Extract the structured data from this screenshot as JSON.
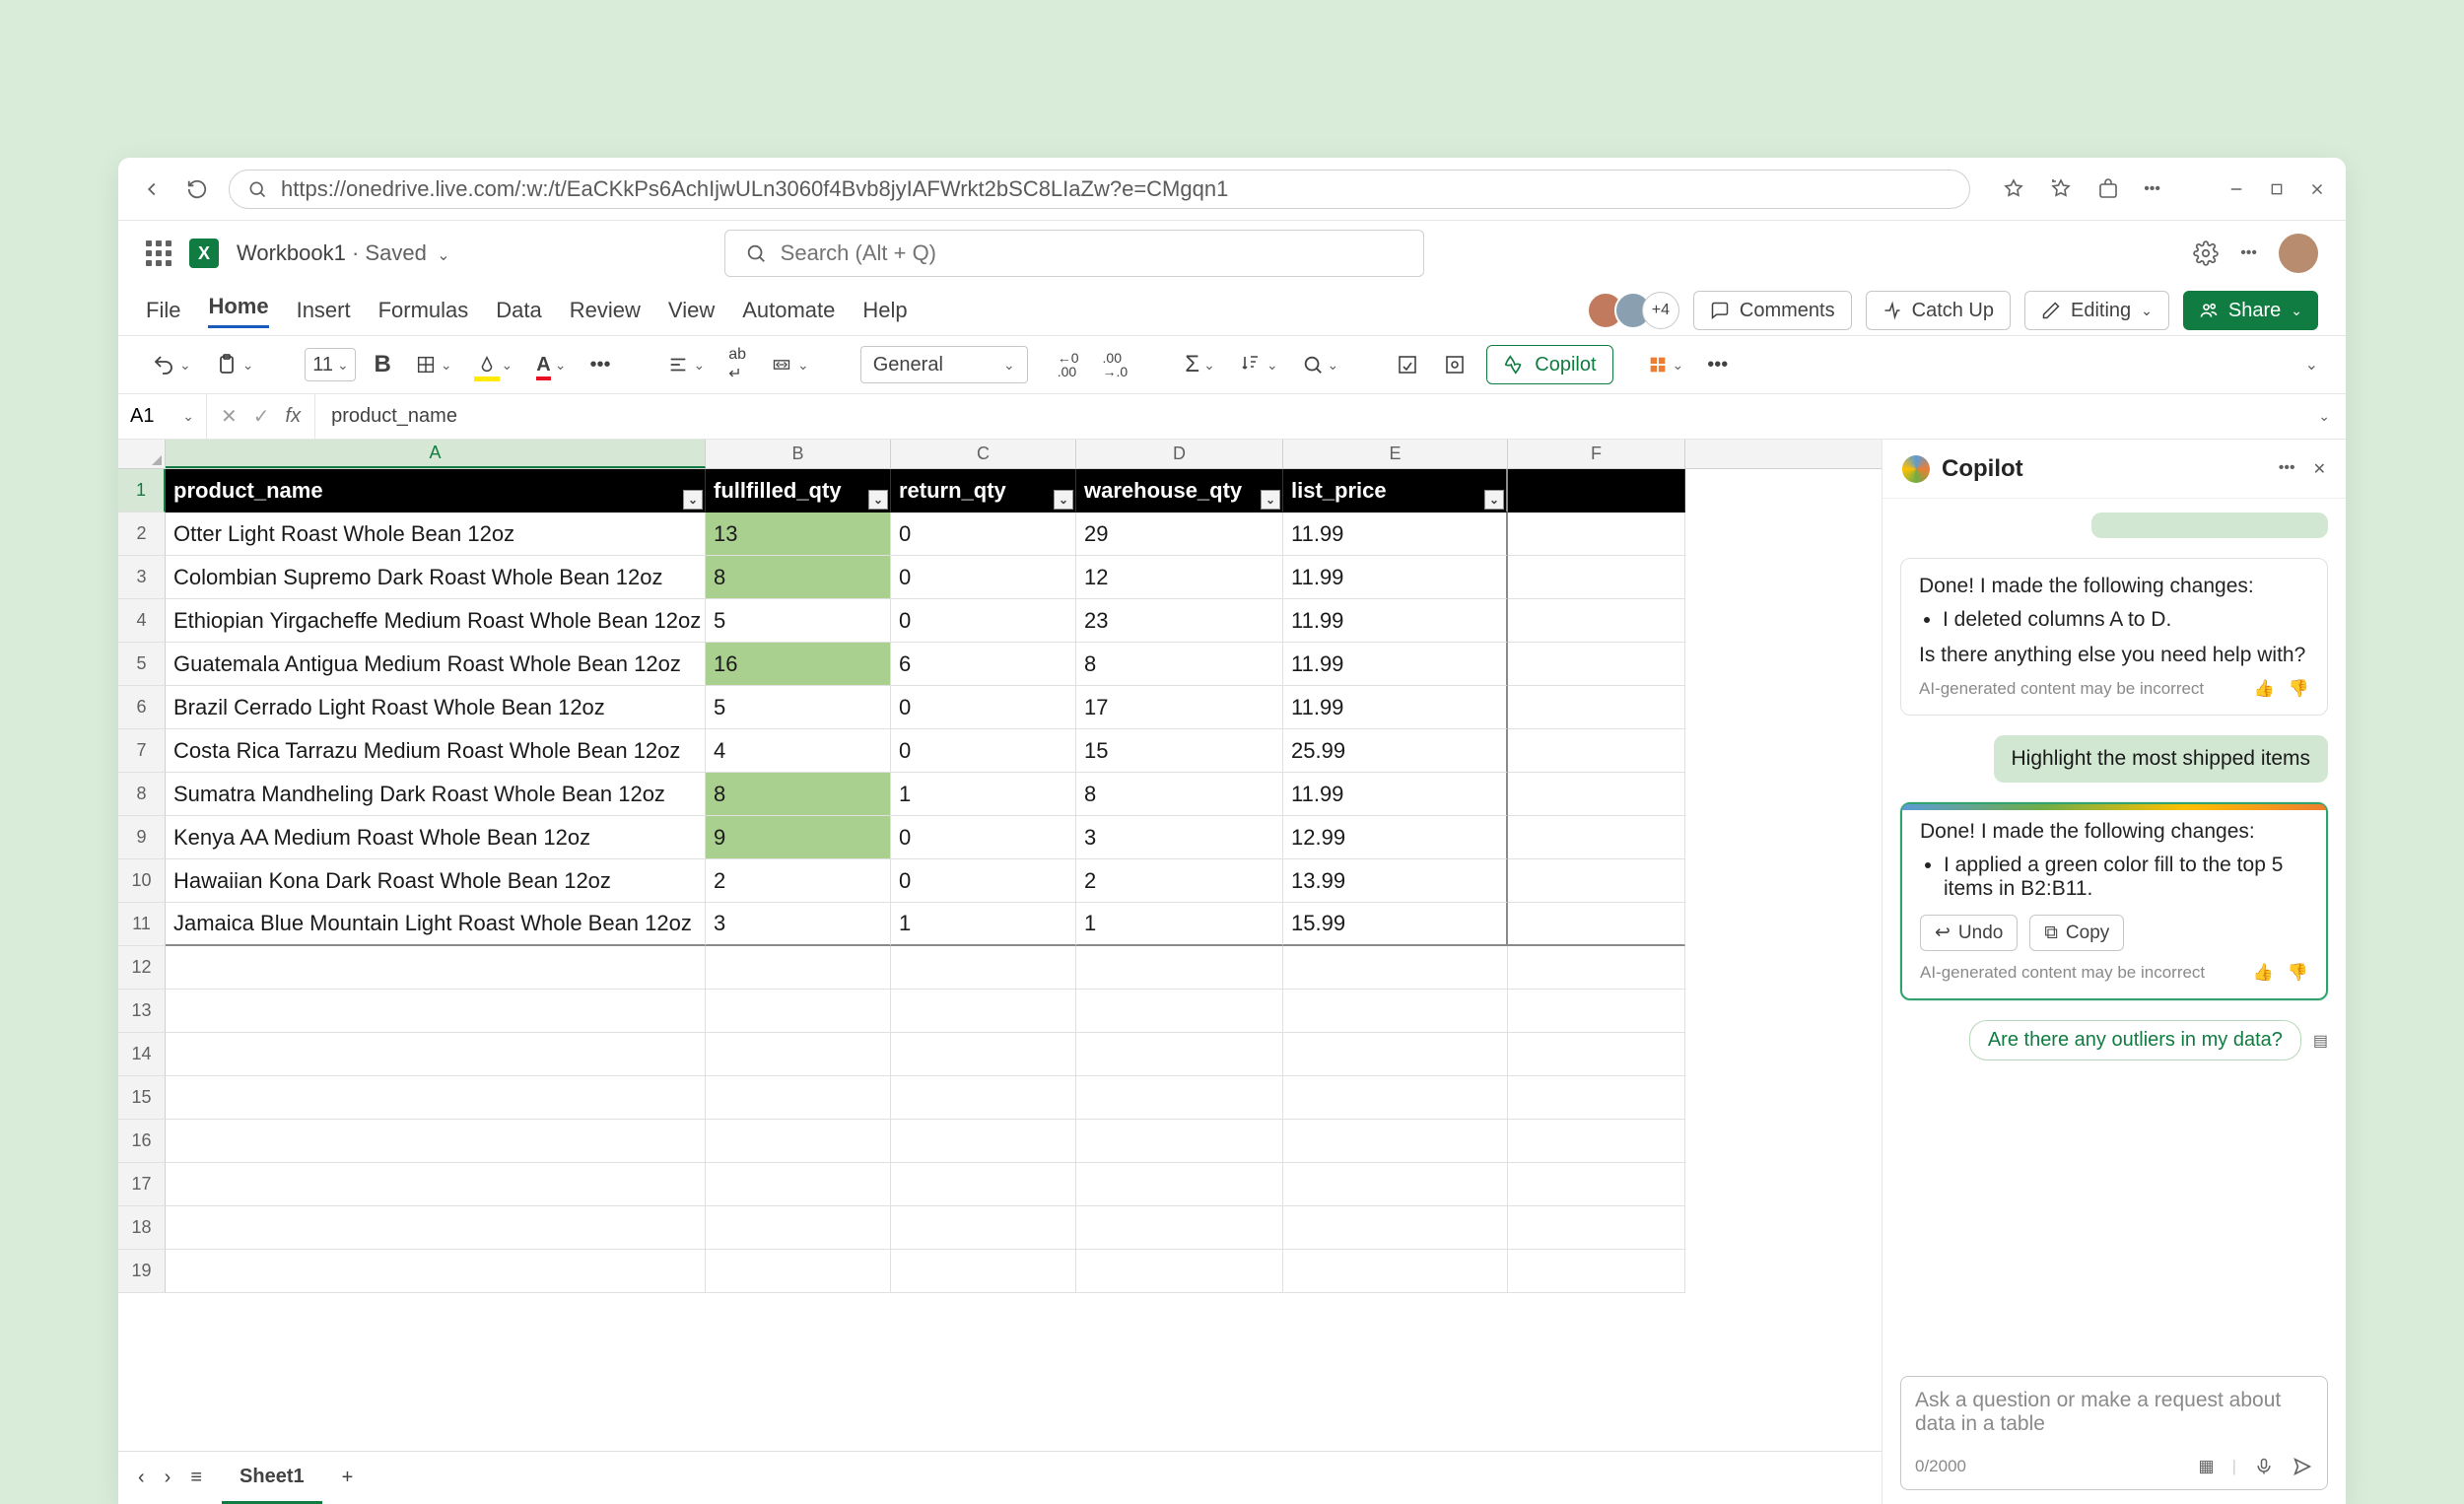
{
  "browser": {
    "url": "https://onedrive.live.com/:w:/t/EaCKkPs6AchIjwULn3060f4Bvb8jyIAFWrkt2bSC8LIaZw?e=CMgqn1"
  },
  "title_bar": {
    "doc_name": "Workbook1",
    "saved_label": " · Saved",
    "search_placeholder": "Search (Alt + Q)"
  },
  "ribbon": {
    "tabs": [
      "File",
      "Home",
      "Insert",
      "Formulas",
      "Data",
      "Review",
      "View",
      "Automate",
      "Help"
    ],
    "active_tab_index": 1,
    "presence_extra": "+4",
    "comments_label": "Comments",
    "catchup_label": "Catch Up",
    "editing_label": "Editing",
    "share_label": "Share"
  },
  "toolbar": {
    "font_size": "11",
    "number_format": "General",
    "copilot_label": "Copilot",
    "fill_accent": "#ffea00",
    "font_accent": "#e81123",
    "highlight_green": "#a9d08e"
  },
  "formula_bar": {
    "cell_ref": "A1",
    "value": "product_name"
  },
  "columns": [
    "A",
    "B",
    "C",
    "D",
    "E",
    "F"
  ],
  "table": {
    "headers": [
      "product_name",
      "fullfilled_qty",
      "return_qty",
      "warehouse_qty",
      "list_price"
    ],
    "rows": [
      {
        "name": "Otter Light Roast Whole Bean 12oz",
        "filled": "13",
        "ret": "0",
        "wh": "29",
        "price": "11.99",
        "hl": true
      },
      {
        "name": "Colombian Supremo Dark Roast Whole Bean 12oz",
        "filled": "8",
        "ret": "0",
        "wh": "12",
        "price": "11.99",
        "hl": true
      },
      {
        "name": "Ethiopian Yirgacheffe Medium Roast Whole Bean 12oz",
        "filled": "5",
        "ret": "0",
        "wh": "23",
        "price": "11.99",
        "hl": false
      },
      {
        "name": "Guatemala Antigua Medium Roast Whole Bean 12oz",
        "filled": "16",
        "ret": "6",
        "wh": "8",
        "price": "11.99",
        "hl": true
      },
      {
        "name": "Brazil Cerrado Light Roast Whole Bean 12oz",
        "filled": "5",
        "ret": "0",
        "wh": "17",
        "price": "11.99",
        "hl": false
      },
      {
        "name": "Costa Rica Tarrazu Medium Roast Whole Bean 12oz",
        "filled": "4",
        "ret": "0",
        "wh": "15",
        "price": "25.99",
        "hl": false
      },
      {
        "name": "Sumatra Mandheling Dark Roast Whole Bean 12oz",
        "filled": "8",
        "ret": "1",
        "wh": "8",
        "price": "11.99",
        "hl": true
      },
      {
        "name": "Kenya AA Medium Roast Whole Bean 12oz",
        "filled": "9",
        "ret": "0",
        "wh": "3",
        "price": "12.99",
        "hl": true
      },
      {
        "name": "Hawaiian Kona Dark Roast Whole Bean 12oz",
        "filled": "2",
        "ret": "0",
        "wh": "2",
        "price": "13.99",
        "hl": false
      },
      {
        "name": "Jamaica Blue Mountain Light Roast Whole Bean 12oz",
        "filled": "3",
        "ret": "1",
        "wh": "1",
        "price": "15.99",
        "hl": false
      }
    ],
    "header_bg": "#000000",
    "header_fg": "#ffffff",
    "highlight_color": "#a9d08e",
    "row_numbers_start": 1,
    "extra_empty_rows": 8
  },
  "sheet_footer": {
    "sheet_name": "Sheet1"
  },
  "copilot": {
    "title": "Copilot",
    "msg1_intro": "Done! I made the following changes:",
    "msg1_bullet": "I deleted columns A to D.",
    "msg1_followup": "Is there anything else you need help with?",
    "disclaimer": "AI-generated content may be incorrect",
    "user_msg": "Highlight the most shipped items",
    "msg2_intro": "Done! I made the following changes:",
    "msg2_bullet": "I applied a green color fill to the top 5 items in B2:B11.",
    "undo_label": "Undo",
    "copy_label": "Copy",
    "suggestion": "Are there any outliers in my data?",
    "input_placeholder": "Ask a question or make a request about data in a table",
    "char_count": "0/2000"
  },
  "colors": {
    "page_bg": "#d8ecd9",
    "excel_green": "#107c41",
    "selection_green": "#107c41"
  }
}
